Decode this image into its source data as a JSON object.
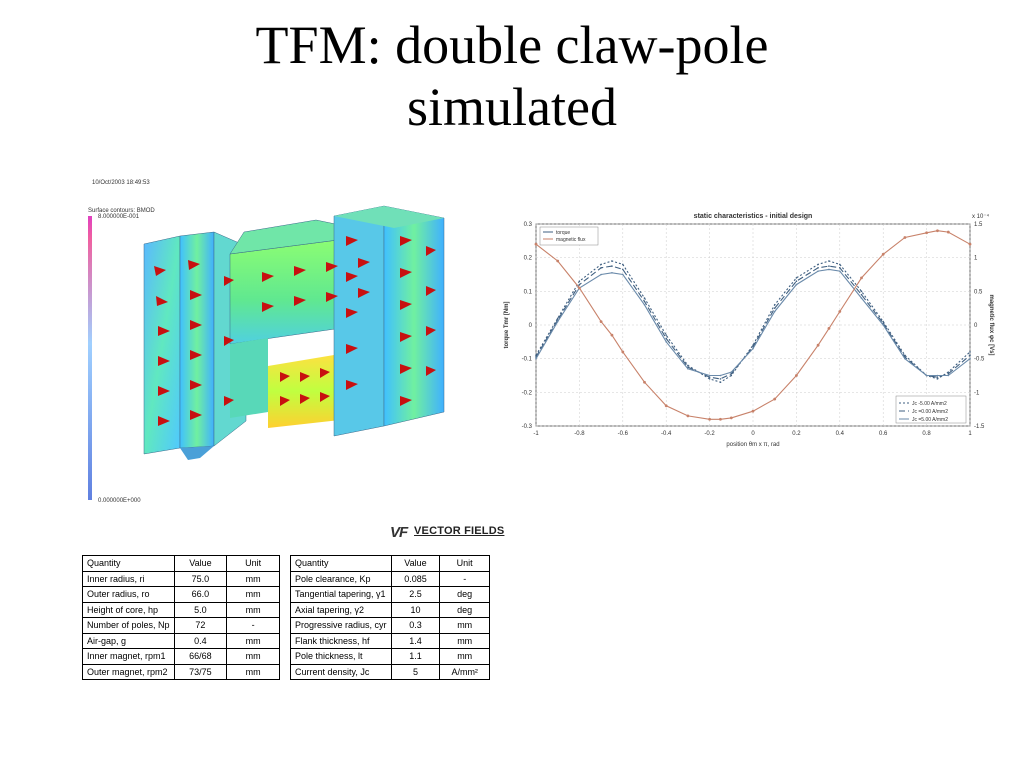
{
  "slide": {
    "title_line1": "TFM: double claw-pole",
    "title_line2": "simulated"
  },
  "simulation": {
    "date_label": "10/Oct/2003 18:49:53",
    "contour_label": "Surface contours: BMOD",
    "scale_max": "8.000000E-001",
    "scale_min": "0.000000E+000"
  },
  "chart_data": {
    "type": "line",
    "title": "static characteristics - initial design",
    "xlabel": "position θm x π, rad",
    "ylabel_left": "torque Tmr [Nm]",
    "ylabel_right": "magnetic flux φc [Vs]",
    "right_axis_exponent": "x 10⁻⁴",
    "xlim": [
      -1,
      1
    ],
    "ylim": [
      -0.3,
      0.3
    ],
    "ylim_right": [
      -1.5,
      1.5
    ],
    "x_ticks": [
      "-1",
      "-0.8",
      "-0.6",
      "-0.4",
      "-0.2",
      "0",
      "0.2",
      "0.4",
      "0.6",
      "0.8",
      "1"
    ],
    "y_ticks": [
      "0.3",
      "0.2",
      "0.1",
      "0",
      "-0.1",
      "-0.2",
      "-0.3"
    ],
    "y_right_ticks": [
      "1.5",
      "1",
      "0.5",
      "0",
      "-0.5",
      "-1",
      "-1.5"
    ],
    "grid": true,
    "legend_top": [
      "torque",
      "magnetic flux"
    ],
    "legend_bottom": [
      "Jc -5.00 A/mm2",
      "Jc =0.00 A/mm2",
      "Jc =5.00 A/mm2"
    ],
    "legend_placement": "top-left and bottom-right",
    "x": [
      -1.0,
      -0.9,
      -0.8,
      -0.7,
      -0.65,
      -0.6,
      -0.5,
      -0.4,
      -0.3,
      -0.2,
      -0.15,
      -0.1,
      0.0,
      0.1,
      0.2,
      0.3,
      0.35,
      0.4,
      0.5,
      0.6,
      0.7,
      0.8,
      0.85,
      0.9,
      1.0
    ],
    "series": [
      {
        "name": "Jc -5.00 A/mm2",
        "axis": "left",
        "color": "#3f5f80",
        "dash": "2,2",
        "values": [
          -0.09,
          0.02,
          0.13,
          0.18,
          0.19,
          0.18,
          0.08,
          -0.03,
          -0.12,
          -0.16,
          -0.17,
          -0.15,
          -0.06,
          0.06,
          0.14,
          0.18,
          0.19,
          0.18,
          0.1,
          0.01,
          -0.09,
          -0.15,
          -0.16,
          -0.14,
          -0.08
        ]
      },
      {
        "name": "Jc =0.00 A/mm2",
        "axis": "left",
        "color": "#3f5f80",
        "dash": "6,3",
        "values": [
          -0.095,
          0.015,
          0.12,
          0.17,
          0.175,
          0.165,
          0.07,
          -0.04,
          -0.125,
          -0.155,
          -0.16,
          -0.145,
          -0.065,
          0.05,
          0.13,
          0.17,
          0.175,
          0.17,
          0.09,
          0.005,
          -0.095,
          -0.15,
          -0.155,
          -0.145,
          -0.09
        ]
      },
      {
        "name": "Jc =5.00 A/mm2",
        "axis": "left",
        "color": "#6a8aaa",
        "dash": "",
        "values": [
          -0.1,
          0.01,
          0.11,
          0.15,
          0.155,
          0.15,
          0.06,
          -0.05,
          -0.13,
          -0.15,
          -0.15,
          -0.14,
          -0.07,
          0.04,
          0.12,
          0.16,
          0.165,
          0.16,
          0.08,
          0.0,
          -0.1,
          -0.15,
          -0.15,
          -0.15,
          -0.1
        ]
      },
      {
        "name": "magnetic flux",
        "axis": "right",
        "color": "#c8826a",
        "dash": "",
        "values": [
          1.2,
          0.95,
          0.55,
          0.05,
          -0.15,
          -0.4,
          -0.85,
          -1.2,
          -1.35,
          -1.4,
          -1.4,
          -1.38,
          -1.28,
          -1.1,
          -0.75,
          -0.3,
          -0.05,
          0.2,
          0.7,
          1.05,
          1.3,
          1.37,
          1.4,
          1.38,
          1.2
        ]
      }
    ]
  },
  "logo": {
    "mark": "VF",
    "text": "VECTOR FIELDS"
  },
  "table1": {
    "header": [
      "Quantity",
      "Value",
      "Unit"
    ],
    "rows": [
      [
        "Inner radius, ri",
        "75.0",
        "mm"
      ],
      [
        "Outer radius, ro",
        "66.0",
        "mm"
      ],
      [
        "Height of core, hp",
        "5.0",
        "mm"
      ],
      [
        "Number of poles, Np",
        "72",
        "-"
      ],
      [
        "Air-gap, g",
        "0.4",
        "mm"
      ],
      [
        "Inner magnet, rpm1",
        "66/68",
        "mm"
      ],
      [
        "Outer magnet, rpm2",
        "73/75",
        "mm"
      ]
    ]
  },
  "table2": {
    "header": [
      "Quantity",
      "Value",
      "Unit"
    ],
    "rows": [
      [
        "Pole clearance, Kp",
        "0.085",
        "-"
      ],
      [
        "Tangential tapering, γ1",
        "2.5",
        "deg"
      ],
      [
        "Axial tapering, γ2",
        "10",
        "deg"
      ],
      [
        "Progressive radius, cyr",
        "0.3",
        "mm"
      ],
      [
        "Flank thickness, hf",
        "1.4",
        "mm"
      ],
      [
        "Pole thickness, lt",
        "1.1",
        "mm"
      ],
      [
        "Current density, Jc",
        "5",
        "A/mm²"
      ]
    ]
  }
}
